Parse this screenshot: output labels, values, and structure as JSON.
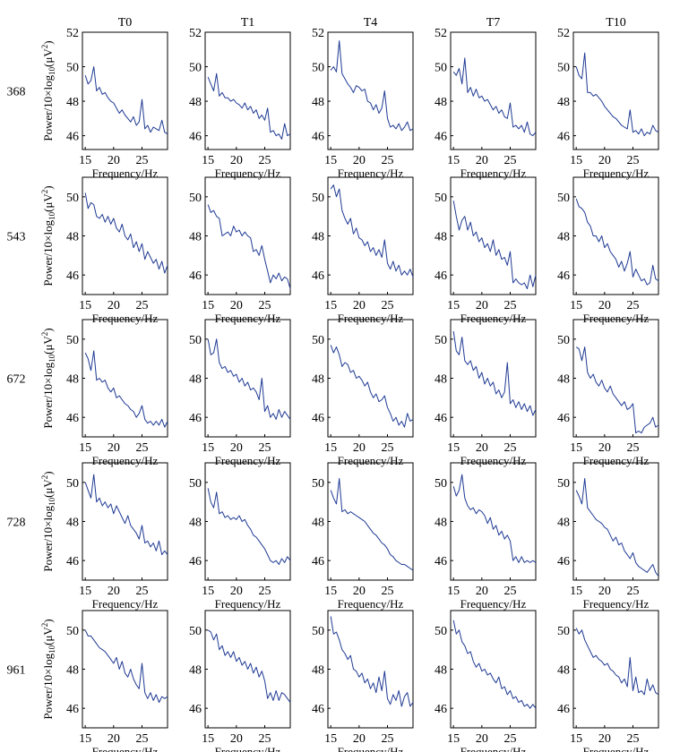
{
  "columns": [
    "T0",
    "T1",
    "T4",
    "T7",
    "T10"
  ],
  "rows": [
    "368",
    "543",
    "672",
    "728",
    "961"
  ],
  "axes": {
    "xlabel": "Frequency/Hz",
    "ylabel_prefix": "Power/10×log",
    "ylabel_sub": "10",
    "ylabel_suffix": "(μV",
    "ylabel_sup": "2",
    "ylabel_end": ")",
    "x_range": [
      14.5,
      29.5
    ],
    "x_ticks": [
      15,
      20,
      25
    ],
    "row_ranges": [
      [
        45.2,
        52
      ],
      [
        45,
        51
      ],
      [
        45,
        51
      ],
      [
        45,
        51
      ],
      [
        45,
        51
      ]
    ],
    "row_ticks": [
      [
        46,
        48,
        50,
        52
      ],
      [
        46,
        48,
        50
      ],
      [
        46,
        48,
        50
      ],
      [
        46,
        48,
        50
      ],
      [
        46,
        48,
        50
      ]
    ]
  },
  "chart_data": {
    "type": "line",
    "x": [
      15,
      15.5,
      16,
      16.5,
      17,
      17.5,
      18,
      18.5,
      19,
      19.5,
      20,
      20.5,
      21,
      21.5,
      22,
      22.5,
      23,
      23.5,
      24,
      24.5,
      25,
      25.5,
      26,
      26.5,
      27,
      27.5,
      28,
      28.5,
      29,
      29.5
    ],
    "panels": [
      [
        {
          "column": "T0",
          "row": "368",
          "values": [
            49.5,
            49.0,
            49.2,
            50.0,
            48.6,
            48.8,
            48.4,
            48.5,
            48.2,
            48.0,
            47.9,
            47.6,
            47.3,
            47.5,
            47.2,
            47.0,
            46.8,
            47.1,
            46.6,
            46.8,
            48.1,
            46.4,
            46.6,
            46.2,
            46.5,
            46.4,
            46.3,
            46.9,
            46.2,
            46.1
          ]
        },
        {
          "column": "T1",
          "row": "368",
          "values": [
            49.4,
            49.0,
            48.6,
            49.6,
            48.3,
            48.5,
            48.2,
            48.2,
            48.0,
            48.1,
            47.9,
            47.8,
            47.6,
            47.9,
            47.5,
            47.7,
            47.3,
            47.5,
            47.0,
            47.2,
            46.9,
            47.6,
            46.2,
            46.3,
            46.0,
            46.1,
            45.8,
            46.7,
            46.0,
            46.1
          ]
        },
        {
          "column": "T4",
          "row": "368",
          "values": [
            49.8,
            50.0,
            49.7,
            51.5,
            49.6,
            49.3,
            49.0,
            48.8,
            48.5,
            48.9,
            48.8,
            48.6,
            48.7,
            48.0,
            47.9,
            47.5,
            47.8,
            47.3,
            47.6,
            48.6,
            47.0,
            46.5,
            46.6,
            46.4,
            46.7,
            46.3,
            46.5,
            46.8,
            46.3,
            46.4
          ]
        },
        {
          "column": "T7",
          "row": "368",
          "values": [
            49.7,
            49.5,
            49.9,
            49.0,
            50.5,
            48.5,
            48.8,
            48.3,
            48.7,
            48.2,
            48.3,
            48.0,
            48.1,
            47.8,
            47.5,
            47.7,
            47.3,
            47.5,
            47.1,
            47.0,
            47.9,
            46.5,
            46.6,
            46.4,
            46.6,
            46.2,
            46.8,
            46.1,
            46.0,
            46.2
          ]
        },
        {
          "column": "T10",
          "row": "368",
          "values": [
            50.0,
            49.5,
            49.3,
            50.8,
            48.5,
            48.5,
            48.3,
            48.4,
            48.2,
            48.0,
            47.7,
            47.5,
            47.3,
            47.1,
            47.0,
            46.8,
            46.6,
            46.5,
            46.4,
            47.5,
            46.2,
            46.3,
            46.1,
            46.4,
            46.0,
            46.2,
            46.1,
            46.6,
            46.3,
            46.2
          ]
        }
      ],
      [
        {
          "column": "T0",
          "row": "543",
          "values": [
            50.2,
            49.4,
            49.7,
            49.6,
            49.0,
            48.9,
            49.1,
            48.7,
            49.0,
            48.6,
            48.9,
            48.4,
            48.2,
            48.6,
            48.0,
            47.8,
            48.1,
            47.4,
            47.7,
            47.2,
            47.6,
            46.8,
            47.2,
            46.9,
            46.6,
            46.8,
            46.3,
            46.7,
            46.1,
            46.5
          ]
        },
        {
          "column": "T1",
          "row": "543",
          "values": [
            49.6,
            49.2,
            49.3,
            49.0,
            48.9,
            48.0,
            48.1,
            48.2,
            48.0,
            48.5,
            48.2,
            48.3,
            48.0,
            48.2,
            48.0,
            47.9,
            47.2,
            47.3,
            47.0,
            47.5,
            46.8,
            46.2,
            45.6,
            46.0,
            45.8,
            46.1,
            45.7,
            45.9,
            45.8,
            45.3
          ]
        },
        {
          "column": "T4",
          "row": "543",
          "values": [
            50.4,
            50.6,
            50.0,
            50.4,
            49.3,
            48.9,
            48.6,
            48.9,
            48.1,
            48.4,
            47.9,
            47.8,
            47.5,
            47.7,
            47.2,
            47.4,
            47.0,
            47.3,
            46.9,
            47.8,
            46.6,
            46.3,
            46.7,
            46.2,
            46.5,
            46.0,
            46.2,
            46.0,
            46.3,
            45.9
          ]
        },
        {
          "column": "T7",
          "row": "543",
          "values": [
            49.8,
            49.0,
            48.3,
            48.8,
            49.0,
            48.3,
            48.7,
            48.0,
            48.2,
            47.7,
            47.9,
            47.4,
            47.6,
            47.2,
            47.8,
            47.0,
            47.3,
            46.8,
            46.9,
            46.5,
            47.2,
            45.6,
            45.8,
            45.6,
            45.5,
            45.6,
            45.3,
            46.0,
            45.4,
            46.0
          ]
        },
        {
          "column": "T10",
          "row": "543",
          "values": [
            49.9,
            49.5,
            49.4,
            49.2,
            48.7,
            48.5,
            48.0,
            48.0,
            47.7,
            48.0,
            47.4,
            47.6,
            47.2,
            47.0,
            46.8,
            46.4,
            46.7,
            46.2,
            46.6,
            47.2,
            45.9,
            46.3,
            46.0,
            45.7,
            45.8,
            45.5,
            45.6,
            46.5,
            45.8,
            45.7
          ]
        }
      ],
      [
        {
          "column": "T0",
          "row": "672",
          "values": [
            49.3,
            49.0,
            48.4,
            49.4,
            47.9,
            48.0,
            47.8,
            47.9,
            47.5,
            47.3,
            47.5,
            47.0,
            47.1,
            46.9,
            46.7,
            46.6,
            46.4,
            46.3,
            46.0,
            46.2,
            46.6,
            45.9,
            45.7,
            45.8,
            45.6,
            45.8,
            45.6,
            45.9,
            45.5,
            45.8
          ]
        },
        {
          "column": "T1",
          "row": "672",
          "values": [
            50.0,
            49.2,
            49.3,
            50.0,
            48.8,
            48.5,
            48.6,
            48.3,
            48.4,
            48.1,
            48.2,
            47.8,
            48.0,
            47.6,
            47.8,
            47.4,
            47.5,
            47.3,
            46.9,
            48.0,
            46.3,
            46.6,
            46.0,
            46.2,
            45.9,
            46.4,
            46.0,
            46.3,
            46.1,
            45.9
          ]
        },
        {
          "column": "T4",
          "row": "672",
          "values": [
            49.7,
            49.3,
            49.6,
            49.2,
            48.6,
            48.8,
            48.7,
            48.3,
            48.4,
            48.0,
            48.1,
            47.9,
            47.6,
            47.8,
            47.3,
            47.0,
            47.2,
            46.8,
            46.9,
            47.1,
            46.5,
            46.2,
            45.8,
            46.0,
            45.6,
            45.8,
            45.5,
            46.2,
            45.8,
            45.9
          ]
        },
        {
          "column": "T7",
          "row": "672",
          "values": [
            50.4,
            49.4,
            49.2,
            50.1,
            48.9,
            48.7,
            48.9,
            48.4,
            48.6,
            48.0,
            48.3,
            47.7,
            48.0,
            47.6,
            47.8,
            47.2,
            47.4,
            47.0,
            47.3,
            48.8,
            46.7,
            46.9,
            46.5,
            46.8,
            46.4,
            46.7,
            46.3,
            46.6,
            46.1,
            46.4
          ]
        },
        {
          "column": "T10",
          "row": "672",
          "values": [
            49.6,
            49.5,
            48.9,
            49.6,
            48.3,
            48.0,
            48.2,
            47.8,
            47.6,
            47.9,
            47.5,
            47.3,
            47.6,
            47.2,
            47.0,
            46.8,
            46.6,
            46.8,
            46.4,
            46.5,
            46.7,
            45.2,
            45.3,
            45.2,
            45.5,
            45.6,
            45.7,
            46.0,
            45.5,
            45.6
          ]
        }
      ],
      [
        {
          "column": "T0",
          "row": "728",
          "values": [
            50.0,
            49.6,
            49.2,
            50.4,
            49.0,
            49.2,
            48.8,
            49.0,
            48.7,
            48.9,
            48.4,
            48.8,
            48.5,
            48.2,
            47.9,
            48.3,
            47.8,
            47.6,
            47.4,
            47.1,
            47.8,
            46.9,
            47.0,
            46.7,
            46.9,
            46.5,
            47.0,
            46.3,
            46.5,
            46.3
          ]
        },
        {
          "column": "T1",
          "row": "728",
          "values": [
            49.7,
            49.0,
            48.7,
            49.5,
            48.4,
            48.5,
            48.2,
            48.3,
            48.1,
            48.2,
            48.1,
            48.3,
            48.0,
            48.1,
            47.8,
            47.6,
            47.3,
            47.2,
            47.0,
            46.8,
            46.6,
            46.3,
            46.0,
            45.9,
            46.0,
            45.8,
            46.1,
            45.9,
            46.2,
            46.0
          ]
        },
        {
          "column": "T4",
          "row": "728",
          "values": [
            49.6,
            49.2,
            48.9,
            50.2,
            48.5,
            48.6,
            48.4,
            48.5,
            48.4,
            48.3,
            48.2,
            48.1,
            48.0,
            47.8,
            47.6,
            47.4,
            47.3,
            47.1,
            46.9,
            46.8,
            46.6,
            46.3,
            46.2,
            46.0,
            45.9,
            45.8,
            45.8,
            45.7,
            45.6,
            45.5
          ]
        },
        {
          "column": "T7",
          "row": "728",
          "values": [
            49.8,
            49.3,
            49.6,
            50.4,
            49.2,
            48.8,
            48.6,
            48.7,
            48.4,
            48.6,
            48.5,
            48.3,
            47.9,
            48.2,
            47.6,
            47.8,
            47.3,
            47.5,
            47.1,
            47.3,
            47.0,
            46.0,
            46.2,
            45.9,
            46.2,
            45.9,
            46.0,
            45.9,
            46.0,
            45.9
          ]
        },
        {
          "column": "T10",
          "row": "728",
          "values": [
            49.6,
            49.3,
            48.9,
            50.2,
            48.7,
            48.5,
            48.3,
            48.1,
            48.0,
            47.9,
            47.7,
            47.6,
            47.3,
            47.0,
            47.2,
            46.8,
            46.9,
            46.5,
            46.3,
            46.1,
            46.4,
            45.9,
            45.7,
            45.6,
            45.5,
            45.4,
            45.6,
            45.8,
            45.4,
            45.2
          ]
        }
      ],
      [
        {
          "column": "T0",
          "row": "961",
          "values": [
            50.0,
            49.7,
            49.7,
            49.5,
            49.3,
            49.1,
            49.0,
            48.9,
            48.7,
            48.5,
            48.3,
            48.6,
            48.0,
            48.4,
            47.8,
            47.6,
            48.0,
            47.5,
            47.2,
            47.0,
            48.3,
            46.8,
            46.5,
            46.8,
            46.4,
            46.7,
            46.3,
            46.6,
            46.5,
            46.6
          ]
        },
        {
          "column": "T1",
          "row": "961",
          "values": [
            50.0,
            49.9,
            49.5,
            49.8,
            49.0,
            49.2,
            48.7,
            48.9,
            48.6,
            48.9,
            48.4,
            48.6,
            48.2,
            48.4,
            48.0,
            48.3,
            47.8,
            48.1,
            47.6,
            47.9,
            47.4,
            46.5,
            46.8,
            46.4,
            46.9,
            46.4,
            46.8,
            46.7,
            46.5,
            46.3
          ]
        },
        {
          "column": "T4",
          "row": "961",
          "values": [
            50.7,
            49.8,
            49.9,
            49.5,
            49.0,
            48.8,
            48.5,
            48.7,
            48.0,
            47.9,
            47.6,
            47.8,
            47.3,
            47.5,
            47.0,
            47.3,
            46.8,
            47.6,
            46.9,
            47.9,
            46.5,
            46.2,
            46.7,
            46.4,
            46.9,
            46.1,
            46.6,
            46.8,
            46.1,
            46.3
          ]
        },
        {
          "column": "T7",
          "row": "961",
          "values": [
            50.5,
            49.8,
            50.0,
            49.4,
            49.2,
            48.8,
            48.9,
            48.4,
            48.1,
            48.3,
            47.9,
            48.0,
            47.7,
            47.8,
            47.5,
            47.3,
            47.6,
            47.0,
            47.1,
            46.7,
            46.9,
            46.5,
            46.6,
            46.3,
            46.4,
            46.1,
            46.2,
            46.0,
            46.2,
            46.0
          ]
        },
        {
          "column": "T10",
          "row": "961",
          "values": [
            50.1,
            49.8,
            50.0,
            49.5,
            49.2,
            48.9,
            48.6,
            48.7,
            48.5,
            48.4,
            48.2,
            48.3,
            48.0,
            47.9,
            47.7,
            47.6,
            47.3,
            47.5,
            47.1,
            48.6,
            46.9,
            47.6,
            46.8,
            46.9,
            46.7,
            47.5,
            46.9,
            47.2,
            46.8,
            46.7
          ]
        }
      ]
    ]
  }
}
